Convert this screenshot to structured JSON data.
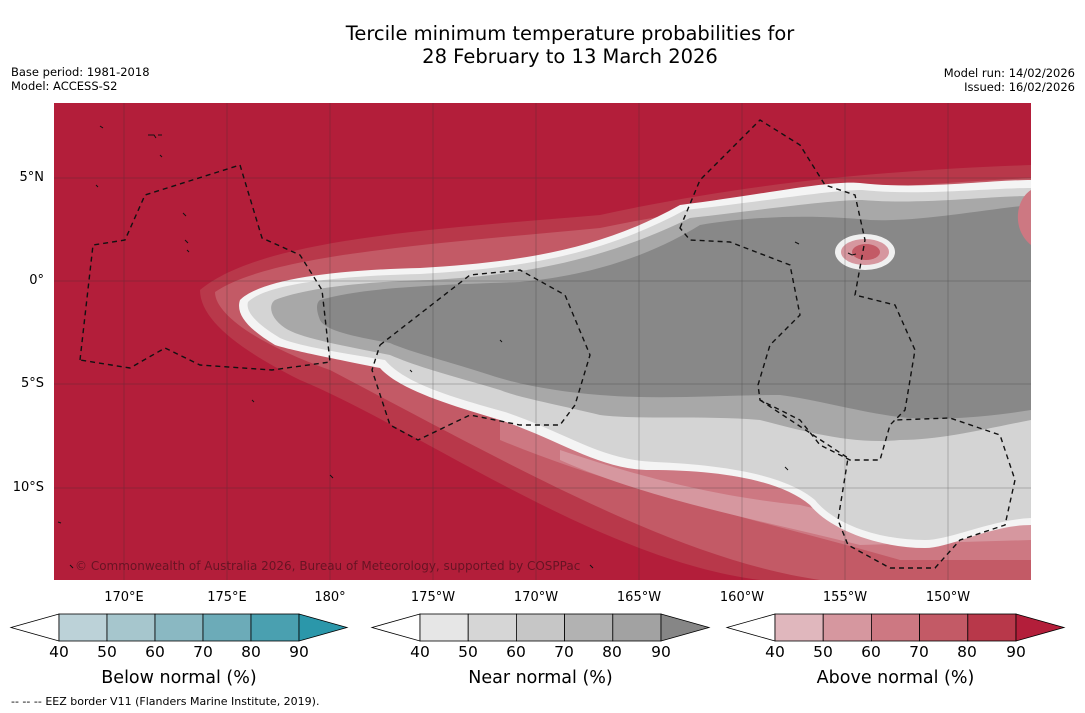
{
  "title": {
    "line1": "Tercile minimum temperature probabilities for",
    "line2": "28 February to 13 March 2026"
  },
  "meta": {
    "base_period": "Base period: 1981-2018",
    "model": "Model: ACCESS-S2",
    "model_run": "Model run: 14/02/2026",
    "issued": "Issued: 16/02/2026"
  },
  "map": {
    "lat_labels": [
      "5°N",
      "0°",
      "5°S",
      "10°S"
    ],
    "lon_labels": [
      "170°E",
      "175°E",
      "180°",
      "175°W",
      "170°W",
      "165°W",
      "160°W",
      "155°W",
      "150°W"
    ],
    "copyright": "© Commonwealth of Australia 2026, Bureau of Meteorology, supported by COSPPac"
  },
  "colorbars": {
    "below": {
      "title": "Below normal (%)",
      "ticks": [
        "40",
        "50",
        "60",
        "70",
        "80",
        "90"
      ],
      "colors": [
        "#bcd2d8",
        "#a6c6cd",
        "#8ab8c2",
        "#6cabb8",
        "#4aa0b0",
        "#2b97aa"
      ]
    },
    "near": {
      "title": "Near normal (%)",
      "ticks": [
        "40",
        "50",
        "60",
        "70",
        "80",
        "90"
      ],
      "colors": [
        "#e6e6e6",
        "#d6d6d6",
        "#c6c6c6",
        "#b2b2b2",
        "#a2a2a2",
        "#868686"
      ]
    },
    "above": {
      "title": "Above normal (%)",
      "ticks": [
        "40",
        "50",
        "60",
        "70",
        "80",
        "90"
      ],
      "colors": [
        "#e0b7bd",
        "#d6979f",
        "#cd7882",
        "#c35a66",
        "#b8384a",
        "#b31e3a"
      ]
    }
  },
  "legend": {
    "eez_symbol": "--  --  --",
    "eez_text": "EEZ border V11 (Flanders Marine Institute, 2019)."
  }
}
